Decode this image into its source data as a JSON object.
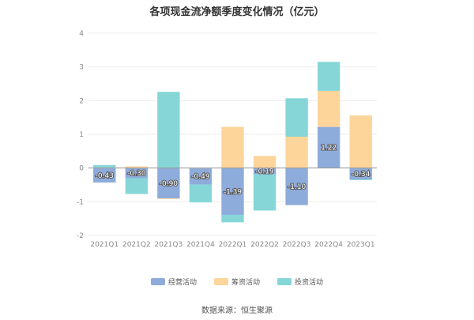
{
  "chart_data": {
    "type": "bar",
    "stacked": true,
    "title": "各项现金流净额季度变化情况（亿元）",
    "categories": [
      "2021Q1",
      "2021Q2",
      "2021Q3",
      "2021Q4",
      "2022Q1",
      "2022Q2",
      "2022Q3",
      "2022Q4",
      "2023Q1"
    ],
    "series": [
      {
        "name": "经营活动",
        "color": "#8EACDB",
        "values": [
          -0.43,
          -0.3,
          -0.9,
          -0.49,
          -1.39,
          -0.19,
          -1.1,
          1.22,
          -0.34
        ],
        "labels": [
          "-0.43",
          "-0.30",
          "-0.90",
          "-0.49",
          "-1.39",
          "-0.19",
          "-1.10",
          "1.22",
          "-0.34"
        ]
      },
      {
        "name": "筹资活动",
        "color": "#FDD59A",
        "values": [
          0.01,
          0.05,
          -0.02,
          0.0,
          1.22,
          0.36,
          0.93,
          1.07,
          1.56
        ]
      },
      {
        "name": "投资活动",
        "color": "#86D6D8",
        "values": [
          0.08,
          -0.47,
          2.26,
          -0.53,
          -0.22,
          -1.07,
          1.14,
          0.86,
          -0.02
        ]
      }
    ],
    "ylim": [
      -2,
      4
    ],
    "yticks": [
      "-2",
      "-1",
      "0",
      "1",
      "2",
      "3",
      "4"
    ],
    "grid": true,
    "legend": "bottom"
  },
  "source": "数据来源：恒生聚源"
}
